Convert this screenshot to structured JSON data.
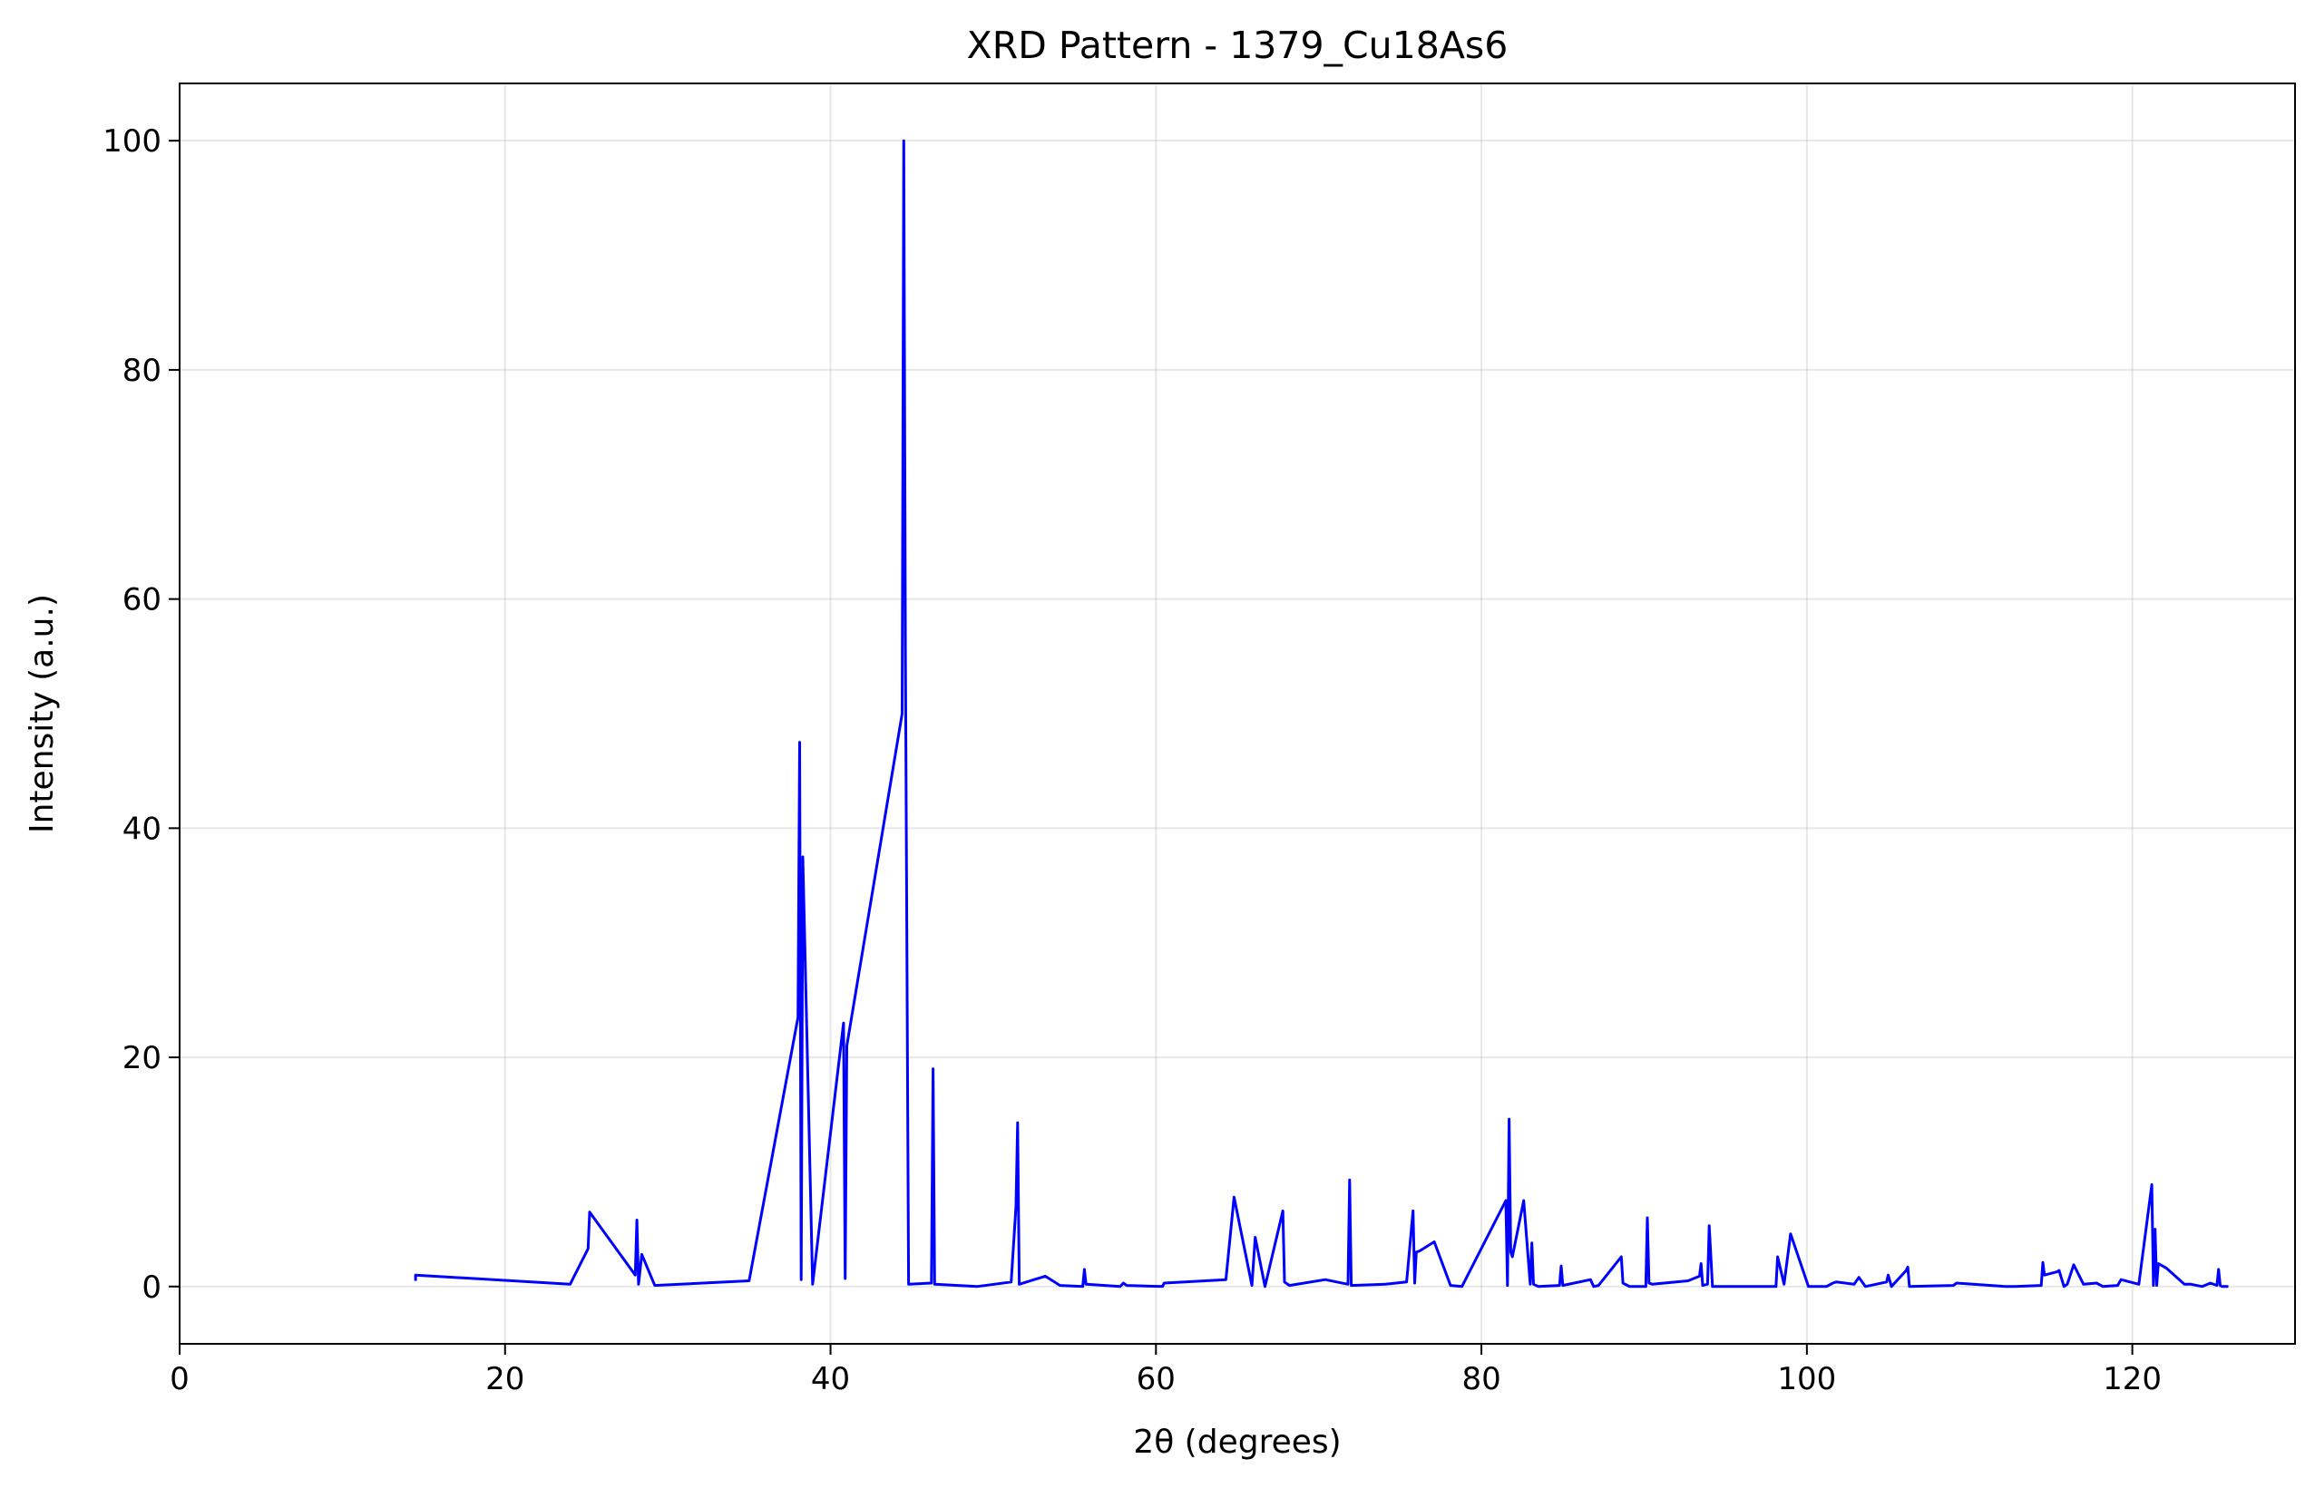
{
  "chart_data": {
    "type": "line",
    "title": "XRD Pattern - 1379_Cu18As6",
    "xlabel": "2θ (degrees)",
    "ylabel": "Intensity (a.u.)",
    "xlim": [
      0,
      130
    ],
    "ylim": [
      -5,
      105
    ],
    "xticks": [
      0,
      20,
      40,
      60,
      80,
      100,
      120
    ],
    "yticks": [
      0,
      20,
      40,
      60,
      80,
      100
    ],
    "grid": true,
    "legend": "none",
    "line_color": "#0000ff",
    "series": [
      {
        "x": [
          14.5,
          14.5,
          24.0,
          25.1,
          25.2,
          28.0,
          28.1,
          28.2,
          28.4,
          29.2,
          35.0,
          38.0,
          38.1,
          38.2,
          38.3,
          38.9,
          40.8,
          40.9,
          41.0,
          44.4,
          44.5,
          44.6,
          44.8,
          46.2,
          46.3,
          46.4,
          49.0,
          51.1,
          51.4,
          51.5,
          51.6,
          53.2,
          54.1,
          55.5,
          55.6,
          55.7,
          57.8,
          58.0,
          58.2,
          60.4,
          60.5,
          64.3,
          64.8,
          65.9,
          66.1,
          66.7,
          67.8,
          67.9,
          68.2,
          70.4,
          71.8,
          71.9,
          72.0,
          74.1,
          75.4,
          75.8,
          75.9,
          76.0,
          76.2,
          77.1,
          78.1,
          78.8,
          81.5,
          81.6,
          81.7,
          81.8,
          81.9,
          82.6,
          83.0,
          83.1,
          83.2,
          83.5,
          84.8,
          84.9,
          85.0,
          86.7,
          86.9,
          87.2,
          88.6,
          88.7,
          89.1,
          90.1,
          90.2,
          90.3,
          90.5,
          92.7,
          93.4,
          93.5,
          93.6,
          93.9,
          94.0,
          94.2,
          98.1,
          98.2,
          98.6,
          99.0,
          100.1,
          101.2,
          101.6,
          101.8,
          102.9,
          103.2,
          103.6,
          104.9,
          105.0,
          105.2,
          106.1,
          106.2,
          106.3,
          109.0,
          109.2,
          112.2,
          112.8,
          114.4,
          114.5,
          114.6,
          115.4,
          115.5,
          115.8,
          116.0,
          116.4,
          117.0,
          117.8,
          118.2,
          119.1,
          119.3,
          120.4,
          121.2,
          121.3,
          121.4,
          121.5,
          121.6,
          122.1,
          123.2,
          123.6,
          124.3,
          124.8,
          125.2,
          125.3,
          125.4,
          125.5,
          125.9
        ],
        "y": [
          0.5,
          1.0,
          0.2,
          3.3,
          6.5,
          1.0,
          5.8,
          0.2,
          2.8,
          0.1,
          0.5,
          23.5,
          47.5,
          0.6,
          37.5,
          0.2,
          23.0,
          0.7,
          21.0,
          50.0,
          100.0,
          55.5,
          0.2,
          0.3,
          19.0,
          0.2,
          0.0,
          0.4,
          7.0,
          14.3,
          0.2,
          0.9,
          0.1,
          0.0,
          1.5,
          0.2,
          0.0,
          0.3,
          0.1,
          0.0,
          0.3,
          0.6,
          7.8,
          0.1,
          4.3,
          0.0,
          6.6,
          0.4,
          0.1,
          0.6,
          0.2,
          9.3,
          0.1,
          0.2,
          0.4,
          6.6,
          0.3,
          3.0,
          3.1,
          3.9,
          0.1,
          0.0,
          7.5,
          0.1,
          14.6,
          3.0,
          2.6,
          7.5,
          0.2,
          3.8,
          0.2,
          0.0,
          0.1,
          1.8,
          0.1,
          0.6,
          0.0,
          0.1,
          2.6,
          0.3,
          0.0,
          0.0,
          6.0,
          0.3,
          0.2,
          0.5,
          0.9,
          2.0,
          0.1,
          0.2,
          5.3,
          0.0,
          0.0,
          2.6,
          0.2,
          4.6,
          0.0,
          0.0,
          0.3,
          0.4,
          0.2,
          0.8,
          0.0,
          0.4,
          1.0,
          0.0,
          1.4,
          1.7,
          0.0,
          0.1,
          0.3,
          0.0,
          0.0,
          0.1,
          2.1,
          1.0,
          1.3,
          1.4,
          0.0,
          0.2,
          1.9,
          0.2,
          0.3,
          0.0,
          0.1,
          0.6,
          0.2,
          8.9,
          0.1,
          5.0,
          0.1,
          2.0,
          1.6,
          0.2,
          0.2,
          0.0,
          0.3,
          0.1,
          1.5,
          0.1,
          0.0,
          0.0
        ]
      }
    ]
  }
}
